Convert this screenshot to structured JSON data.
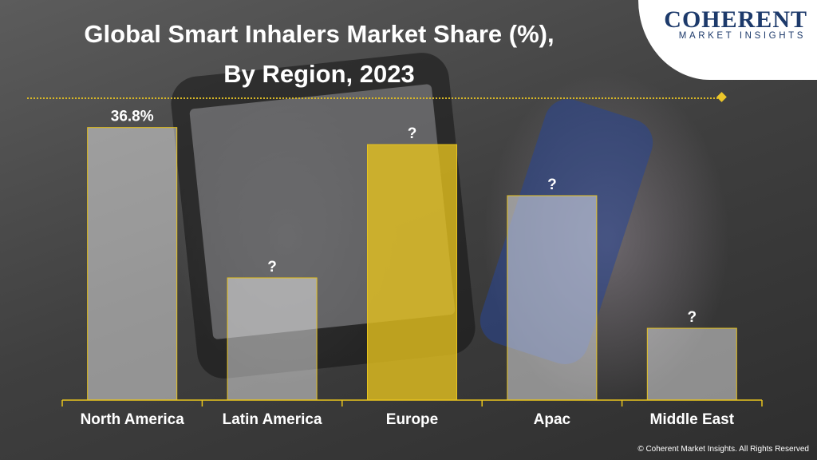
{
  "title_line1": "Global Smart Inhalers Market Share (%),",
  "title_line2": "By Region, 2023",
  "logo": {
    "main": "COHERENT",
    "sub": "MARKET INSIGHTS"
  },
  "copyright": "© Coherent Market Insights. All Rights Reserved",
  "colors": {
    "bar_fill": "rgba(255,255,255,0.45)",
    "bar_border": "#e8c41e",
    "highlight_fill": "rgba(232,196,30,0.78)",
    "accent": "#e8c41e"
  },
  "chart_data": {
    "type": "bar",
    "title": "Global Smart Inhalers Market Share (%), By Region, 2023",
    "categories": [
      "North America",
      "Latin America",
      "Europe",
      "Apac",
      "Middle East"
    ],
    "values": [
      36.8,
      16.5,
      34.5,
      27.6,
      9.7
    ],
    "data_labels": [
      "36.8%",
      "?",
      "?",
      "?",
      "?"
    ],
    "highlight_index": 2,
    "ylim": [
      0,
      40
    ],
    "grid": false,
    "legend": "none"
  }
}
